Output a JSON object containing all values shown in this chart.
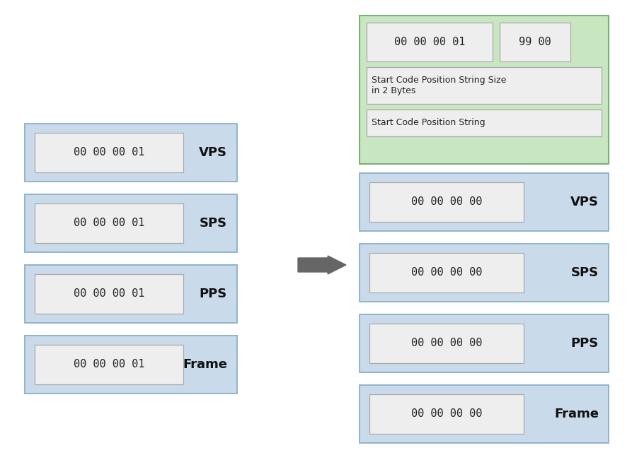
{
  "bg_color": "#ffffff",
  "blue_fill": "#c9daea",
  "blue_edge": "#8ab0c8",
  "green_fill": "#c8e6c0",
  "green_edge": "#7ab07a",
  "inner_fill": "#eeeeee",
  "inner_edge": "#aaaaaa",
  "arrow_color": "#666666",
  "left_boxes": [
    {
      "hex": "00 00 00 01",
      "label": "VPS"
    },
    {
      "hex": "00 00 00 01",
      "label": "SPS"
    },
    {
      "hex": "00 00 00 01",
      "label": "PPS"
    },
    {
      "hex": "00 00 00 01",
      "label": "Frame"
    }
  ],
  "right_green_top_hex1": "00 00 00 01",
  "right_green_top_hex2": "99 00",
  "right_green_sub1": "Start Code Position String Size\nin 2 Bytes",
  "right_green_sub2": "Start Code Position String",
  "right_blue_boxes": [
    {
      "hex": "00 00 00 00",
      "label": "VPS"
    },
    {
      "hex": "00 00 00 00",
      "label": "SPS"
    },
    {
      "hex": "00 00 00 00",
      "label": "PPS"
    },
    {
      "hex": "00 00 00 00",
      "label": "Frame"
    }
  ],
  "hex_fontsize": 11,
  "label_fontsize": 13,
  "sub_fontsize": 9.0
}
